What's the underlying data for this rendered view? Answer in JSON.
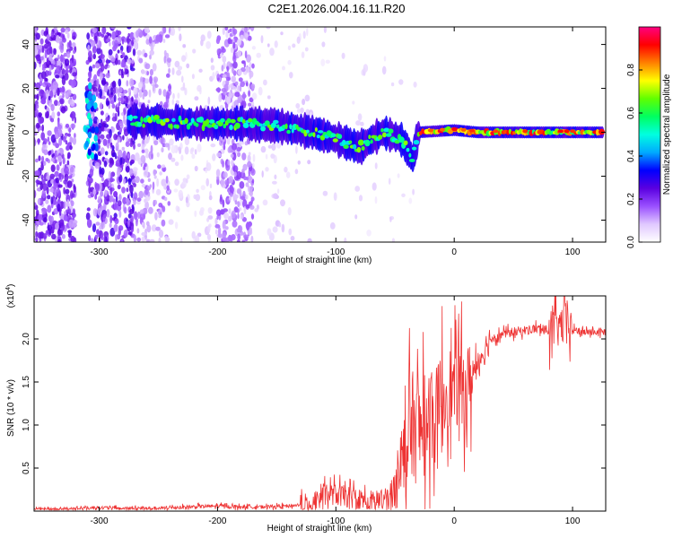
{
  "title": "C2E1.2026.004.16.11.R20",
  "chart_data": [
    {
      "type": "heatmap",
      "name": "spectrogram",
      "xlabel": "Height of straight line (km)",
      "ylabel": "Frequency (Hz)",
      "xlim": [
        -355,
        128
      ],
      "ylim": [
        -50,
        48
      ],
      "xticks": [
        -300,
        -200,
        -100,
        0,
        100
      ],
      "yticks": [
        -40,
        -20,
        0,
        20,
        40
      ],
      "colorbar": {
        "label": "Normalized spectral amplitude",
        "range": [
          0.0,
          1.0
        ],
        "ticks": [
          0.0,
          0.2,
          0.4,
          0.6,
          0.8
        ],
        "colormap": [
          "#ffffff",
          "#e0c8ff",
          "#9a50ff",
          "#5a00e0",
          "#0000ff",
          "#00aaff",
          "#00ffe0",
          "#00ff60",
          "#60ff00",
          "#ffff00",
          "#ff8000",
          "#ff0000",
          "#ff0080"
        ]
      },
      "ridge": [
        {
          "x": -270,
          "y": 5
        },
        {
          "x": -250,
          "y": 5
        },
        {
          "x": -220,
          "y": 4
        },
        {
          "x": -180,
          "y": 4
        },
        {
          "x": -150,
          "y": 3
        },
        {
          "x": -120,
          "y": 0
        },
        {
          "x": -100,
          "y": -3
        },
        {
          "x": -80,
          "y": -7
        },
        {
          "x": -60,
          "y": 0
        },
        {
          "x": -45,
          "y": -3
        },
        {
          "x": -35,
          "y": -12
        },
        {
          "x": -30,
          "y": 0
        },
        {
          "x": 0,
          "y": 1
        },
        {
          "x": 20,
          "y": 0
        },
        {
          "x": 125,
          "y": 0
        }
      ]
    },
    {
      "type": "line",
      "name": "snr",
      "xlabel": "Height of straight line (km)",
      "ylabel": "SNR (10 * v/v)",
      "yscale_label": "(x10",
      "yscale_exponent": "4",
      "xlim": [
        -355,
        128
      ],
      "ylim": [
        0.0,
        2.5
      ],
      "xticks": [
        -300,
        -200,
        -100,
        0,
        100
      ],
      "yticks": [
        0.5,
        1.0,
        1.5,
        2.0
      ],
      "ytick_labels": [
        "0.5",
        "1.0",
        "1.5",
        "2.0"
      ],
      "color": "#ee3333",
      "series": [
        {
          "name": "SNR",
          "x": [
            -355,
            -340,
            -320,
            -300,
            -280,
            -260,
            -240,
            -220,
            -200,
            -180,
            -160,
            -140,
            -125,
            -115,
            -105,
            -95,
            -85,
            -75,
            -65,
            -55,
            -50,
            -45,
            -40,
            -35,
            -30,
            -25,
            -20,
            -15,
            -10,
            -5,
            0,
            5,
            10,
            15,
            20,
            25,
            30,
            40,
            50,
            60,
            70,
            80,
            90,
            95,
            100,
            110,
            120,
            128
          ],
          "y": [
            0.02,
            0.02,
            0.03,
            0.04,
            0.03,
            0.03,
            0.04,
            0.05,
            0.06,
            0.05,
            0.05,
            0.06,
            0.08,
            0.15,
            0.2,
            0.18,
            0.15,
            0.12,
            0.12,
            0.15,
            0.25,
            0.6,
            0.8,
            1.0,
            0.9,
            1.0,
            1.2,
            1.05,
            1.3,
            1.45,
            1.4,
            1.5,
            1.4,
            1.55,
            1.75,
            1.85,
            2.0,
            2.05,
            2.08,
            2.1,
            2.12,
            2.1,
            2.15,
            2.2,
            2.1,
            2.08,
            2.08,
            2.08
          ]
        }
      ]
    }
  ]
}
